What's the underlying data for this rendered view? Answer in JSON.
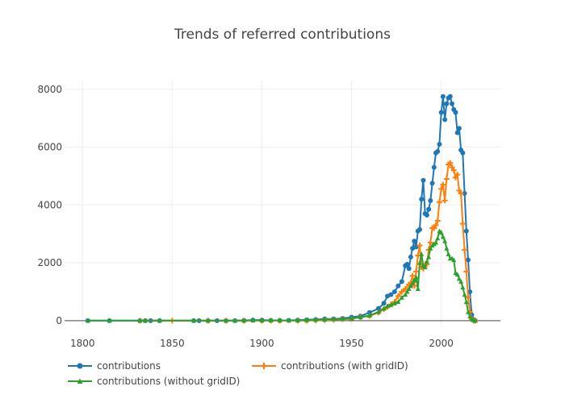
{
  "chart_data": {
    "type": "line",
    "title": "Trends of referred contributions",
    "xlabel": "",
    "ylabel": "",
    "xlim": [
      1790,
      2033
    ],
    "ylim": [
      -200,
      8300
    ],
    "x_ticks": [
      1800,
      1850,
      1900,
      1950,
      2000
    ],
    "y_ticks": [
      0,
      2000,
      4000,
      6000,
      8000
    ],
    "grid": true,
    "legend_position": "bottom",
    "colors": [
      "#1f77b4",
      "#ff7f0e",
      "#2ca02c"
    ],
    "series": [
      {
        "name": "contributions",
        "color": "#1f77b4",
        "marker": "circle",
        "x": [
          1803,
          1815,
          1832,
          1835,
          1838,
          1843,
          1862,
          1865,
          1870,
          1875,
          1880,
          1885,
          1890,
          1895,
          1900,
          1905,
          1910,
          1915,
          1920,
          1925,
          1930,
          1935,
          1940,
          1945,
          1950,
          1955,
          1960,
          1965,
          1968,
          1970,
          1972,
          1974,
          1976,
          1978,
          1980,
          1981,
          1982,
          1983,
          1984,
          1985,
          1986,
          1987,
          1988,
          1989,
          1990,
          1991,
          1992,
          1993,
          1994,
          1995,
          1996,
          1997,
          1998,
          1999,
          2000,
          2001,
          2002,
          2003,
          2004,
          2005,
          2006,
          2007,
          2008,
          2009,
          2010,
          2011,
          2012,
          2013,
          2014,
          2015,
          2016,
          2017,
          2018,
          2019
        ],
        "y": [
          0,
          0,
          0,
          0,
          0,
          0,
          0,
          0,
          0,
          0,
          0,
          0,
          10,
          20,
          20,
          10,
          10,
          10,
          20,
          30,
          40,
          60,
          60,
          80,
          120,
          160,
          280,
          420,
          600,
          850,
          900,
          1000,
          1200,
          1350,
          1900,
          1950,
          1800,
          2200,
          2500,
          2750,
          2550,
          3100,
          3150,
          4200,
          4850,
          3700,
          3650,
          3850,
          4150,
          4750,
          5300,
          5800,
          5850,
          6100,
          7200,
          7750,
          6950,
          7500,
          7700,
          7750,
          7500,
          7300,
          7200,
          6500,
          6650,
          5900,
          5800,
          4400,
          3100,
          2100,
          1000,
          200,
          40,
          0
        ]
      },
      {
        "name": "contributions (with gridID)",
        "color": "#ff7f0e",
        "marker": "cross",
        "x": [
          1832,
          1850,
          1870,
          1880,
          1890,
          1900,
          1905,
          1910,
          1920,
          1925,
          1930,
          1935,
          1940,
          1945,
          1950,
          1955,
          1960,
          1965,
          1968,
          1970,
          1972,
          1974,
          1976,
          1978,
          1980,
          1982,
          1983,
          1984,
          1985,
          1986,
          1987,
          1988,
          1989,
          1990,
          1991,
          1992,
          1993,
          1994,
          1995,
          1996,
          1997,
          1998,
          1999,
          2000,
          2001,
          2002,
          2003,
          2004,
          2005,
          2006,
          2007,
          2008,
          2009,
          2010,
          2011,
          2012,
          2013,
          2014,
          2015,
          2016,
          2017,
          2018,
          2019
        ],
        "y": [
          0,
          0,
          0,
          0,
          0,
          0,
          0,
          0,
          0,
          0,
          10,
          20,
          30,
          50,
          60,
          120,
          160,
          280,
          400,
          480,
          560,
          650,
          850,
          1000,
          1100,
          1250,
          1300,
          1550,
          1200,
          1700,
          2250,
          2600,
          1850,
          1800,
          1950,
          1950,
          2450,
          2700,
          3200,
          3200,
          3300,
          3450,
          4100,
          4550,
          4700,
          4150,
          4900,
          5400,
          5450,
          5300,
          5200,
          4950,
          5050,
          4500,
          4400,
          3350,
          2450,
          1700,
          800,
          300,
          50,
          0,
          0
        ]
      },
      {
        "name": "contributions (without gridID)",
        "color": "#2ca02c",
        "marker": "triangle-up",
        "x": [
          1803,
          1815,
          1832,
          1835,
          1843,
          1862,
          1870,
          1880,
          1885,
          1890,
          1895,
          1900,
          1905,
          1910,
          1915,
          1920,
          1925,
          1930,
          1935,
          1940,
          1945,
          1950,
          1955,
          1960,
          1965,
          1968,
          1970,
          1972,
          1974,
          1976,
          1978,
          1980,
          1981,
          1982,
          1983,
          1984,
          1985,
          1986,
          1987,
          1988,
          1989,
          1990,
          1991,
          1992,
          1993,
          1994,
          1995,
          1996,
          1997,
          1998,
          1999,
          2000,
          2001,
          2002,
          2003,
          2004,
          2005,
          2006,
          2007,
          2008,
          2009,
          2010,
          2011,
          2012,
          2013,
          2014,
          2015,
          2016,
          2017,
          2018,
          2019
        ],
        "y": [
          0,
          0,
          0,
          0,
          0,
          0,
          0,
          0,
          0,
          0,
          10,
          10,
          10,
          10,
          10,
          10,
          20,
          30,
          40,
          50,
          60,
          80,
          120,
          180,
          300,
          420,
          500,
          550,
          600,
          650,
          800,
          900,
          1000,
          1100,
          1200,
          1300,
          1400,
          1500,
          1100,
          2000,
          2300,
          1900,
          1850,
          2050,
          2200,
          2500,
          2600,
          2650,
          2700,
          2850,
          3100,
          3050,
          2900,
          2750,
          2500,
          2300,
          2150,
          2150,
          2100,
          1650,
          1600,
          1450,
          1350,
          1150,
          900,
          650,
          300,
          150,
          50,
          20,
          0
        ]
      }
    ]
  }
}
